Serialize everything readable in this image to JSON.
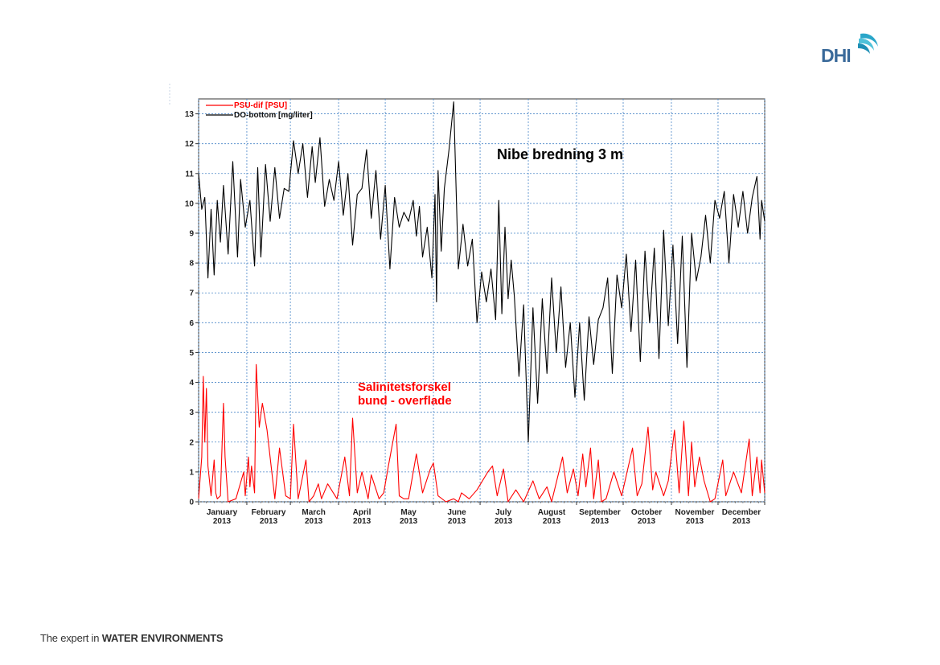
{
  "branding": {
    "logo_text": "DHI",
    "tagline_prefix": "The expert in ",
    "tagline_strong": "WATER ENVIRONMENTS"
  },
  "chart_data": {
    "type": "line",
    "title": "Nibe bredning 3 m",
    "annotation": [
      "Salinitetsforskel",
      "bund - overflade"
    ],
    "xlabel": "",
    "ylabel": "",
    "ylim": [
      0,
      13.5
    ],
    "y_ticks": [
      0,
      1,
      2,
      3,
      4,
      5,
      6,
      7,
      8,
      9,
      10,
      11,
      12,
      13
    ],
    "x_unit": "day of year 2013",
    "xlim": [
      1,
      365
    ],
    "month_ticks": [
      {
        "label": "January",
        "year": "2013",
        "day": 16
      },
      {
        "label": "February",
        "year": "2013",
        "day": 46
      },
      {
        "label": "March",
        "year": "2013",
        "day": 75
      },
      {
        "label": "April",
        "year": "2013",
        "day": 106
      },
      {
        "label": "May",
        "year": "2013",
        "day": 136
      },
      {
        "label": "June",
        "year": "2013",
        "day": 167
      },
      {
        "label": "July",
        "year": "2013",
        "day": 197
      },
      {
        "label": "August",
        "year": "2013",
        "day": 228
      },
      {
        "label": "September",
        "year": "2013",
        "day": 259
      },
      {
        "label": "October",
        "year": "2013",
        "day": 289
      },
      {
        "label": "November",
        "year": "2013",
        "day": 320
      },
      {
        "label": "December",
        "year": "2013",
        "day": 350
      }
    ],
    "month_boundaries": [
      1,
      32,
      60,
      91,
      121,
      152,
      182,
      213,
      244,
      274,
      305,
      335,
      365
    ],
    "grid": true,
    "legend_position": "top-left",
    "series": [
      {
        "name": "PSU-dif [PSU]",
        "color": "#ff0000",
        "x": [
          1,
          3,
          4,
          5,
          6,
          7,
          9,
          11,
          12,
          13,
          15,
          17,
          18,
          20,
          25,
          30,
          31,
          33,
          34,
          35,
          37,
          38,
          40,
          42,
          45,
          50,
          53,
          57,
          60,
          62,
          65,
          70,
          72,
          75,
          78,
          80,
          84,
          90,
          95,
          98,
          100,
          103,
          106,
          110,
          112,
          117,
          120,
          123,
          128,
          130,
          133,
          136,
          141,
          145,
          150,
          152,
          155,
          160,
          165,
          168,
          170,
          175,
          180,
          187,
          190,
          193,
          197,
          200,
          205,
          210,
          216,
          220,
          225,
          228,
          235,
          238,
          242,
          245,
          248,
          250,
          253,
          255,
          258,
          260,
          263,
          268,
          273,
          280,
          283,
          286,
          290,
          293,
          295,
          300,
          303,
          307,
          310,
          313,
          316,
          318,
          320,
          323,
          326,
          330,
          333,
          338,
          340,
          345,
          350,
          355,
          357,
          360,
          362,
          363,
          365
        ],
        "y": [
          0.1,
          1.5,
          4.2,
          2.0,
          3.8,
          1.2,
          0.2,
          1.4,
          0.3,
          0.1,
          0.2,
          3.3,
          1.5,
          0.0,
          0.1,
          1.0,
          0.2,
          1.5,
          0.5,
          1.2,
          0.3,
          4.6,
          2.5,
          3.3,
          2.4,
          0.1,
          1.8,
          0.2,
          0.1,
          2.6,
          0.1,
          1.4,
          0.0,
          0.2,
          0.6,
          0.1,
          0.6,
          0.1,
          1.5,
          0.2,
          2.8,
          0.3,
          1.0,
          0.1,
          0.9,
          0.1,
          0.3,
          1.2,
          2.6,
          0.2,
          0.1,
          0.1,
          1.6,
          0.3,
          1.1,
          1.3,
          0.2,
          0.0,
          0.1,
          0.0,
          0.3,
          0.1,
          0.4,
          1.0,
          1.2,
          0.2,
          1.1,
          0.0,
          0.4,
          0.0,
          0.7,
          0.1,
          0.5,
          0.0,
          1.5,
          0.3,
          1.1,
          0.2,
          1.6,
          0.5,
          1.8,
          0.1,
          1.4,
          0.0,
          0.1,
          1.0,
          0.2,
          1.8,
          0.2,
          0.6,
          2.5,
          0.4,
          1.0,
          0.2,
          0.7,
          2.4,
          0.3,
          2.7,
          0.2,
          2.0,
          0.5,
          1.5,
          0.7,
          0.0,
          0.1,
          1.4,
          0.2,
          1.0,
          0.3,
          2.1,
          0.2,
          1.5,
          0.3,
          1.4,
          0.3
        ]
      },
      {
        "name": "DO-bottom [mg/liter]",
        "color": "#000000",
        "x": [
          1,
          3,
          5,
          7,
          9,
          11,
          13,
          15,
          17,
          20,
          23,
          26,
          28,
          31,
          34,
          37,
          39,
          41,
          44,
          47,
          50,
          53,
          56,
          59,
          62,
          65,
          68,
          71,
          74,
          76,
          79,
          82,
          85,
          88,
          91,
          94,
          97,
          100,
          103,
          106,
          109,
          112,
          115,
          118,
          121,
          124,
          127,
          130,
          133,
          136,
          139,
          141,
          143,
          145,
          148,
          151,
          153,
          154,
          155,
          157,
          159,
          162,
          165,
          168,
          171,
          174,
          177,
          180,
          183,
          186,
          189,
          192,
          194,
          196,
          198,
          200,
          202,
          204,
          207,
          210,
          213,
          216,
          219,
          222,
          225,
          228,
          231,
          234,
          237,
          240,
          243,
          246,
          249,
          252,
          255,
          258,
          261,
          264,
          267,
          270,
          273,
          276,
          279,
          282,
          285,
          288,
          291,
          294,
          297,
          300,
          303,
          306,
          309,
          312,
          315,
          318,
          321,
          324,
          327,
          330,
          333,
          336,
          339,
          342,
          345,
          348,
          351,
          354,
          357,
          360,
          362,
          363,
          365
        ],
        "y": [
          11.0,
          9.8,
          10.2,
          7.5,
          9.8,
          7.6,
          10.1,
          8.7,
          10.6,
          8.3,
          11.4,
          8.2,
          10.8,
          9.2,
          10.1,
          7.9,
          11.2,
          8.2,
          11.3,
          9.4,
          11.2,
          9.5,
          10.5,
          10.4,
          12.1,
          11.0,
          12.0,
          10.2,
          11.9,
          10.7,
          12.2,
          9.9,
          10.8,
          10.1,
          11.4,
          9.6,
          11.0,
          8.6,
          10.3,
          10.5,
          11.8,
          9.5,
          11.1,
          8.8,
          10.6,
          7.8,
          10.2,
          9.2,
          9.7,
          9.4,
          10.1,
          8.9,
          9.9,
          8.2,
          9.2,
          7.5,
          10.3,
          6.7,
          11.1,
          8.4,
          10.5,
          11.8,
          13.4,
          7.8,
          9.3,
          7.9,
          8.8,
          6.0,
          7.7,
          6.7,
          7.8,
          6.1,
          10.1,
          6.3,
          9.2,
          6.8,
          8.1,
          6.9,
          4.2,
          6.6,
          2.0,
          6.5,
          3.3,
          6.8,
          4.3,
          7.5,
          5.0,
          7.2,
          4.5,
          6.0,
          3.5,
          6.0,
          3.4,
          6.2,
          4.6,
          6.1,
          6.5,
          7.5,
          4.3,
          7.6,
          6.5,
          8.3,
          5.7,
          8.1,
          4.7,
          8.4,
          6.0,
          8.5,
          4.8,
          9.1,
          5.9,
          8.6,
          5.3,
          8.9,
          4.5,
          9.0,
          7.4,
          8.2,
          9.6,
          8.0,
          10.1,
          9.5,
          10.4,
          8.0,
          10.3,
          9.2,
          10.4,
          9.0,
          10.2,
          10.9,
          8.8,
          10.1,
          9.4
        ]
      }
    ]
  }
}
